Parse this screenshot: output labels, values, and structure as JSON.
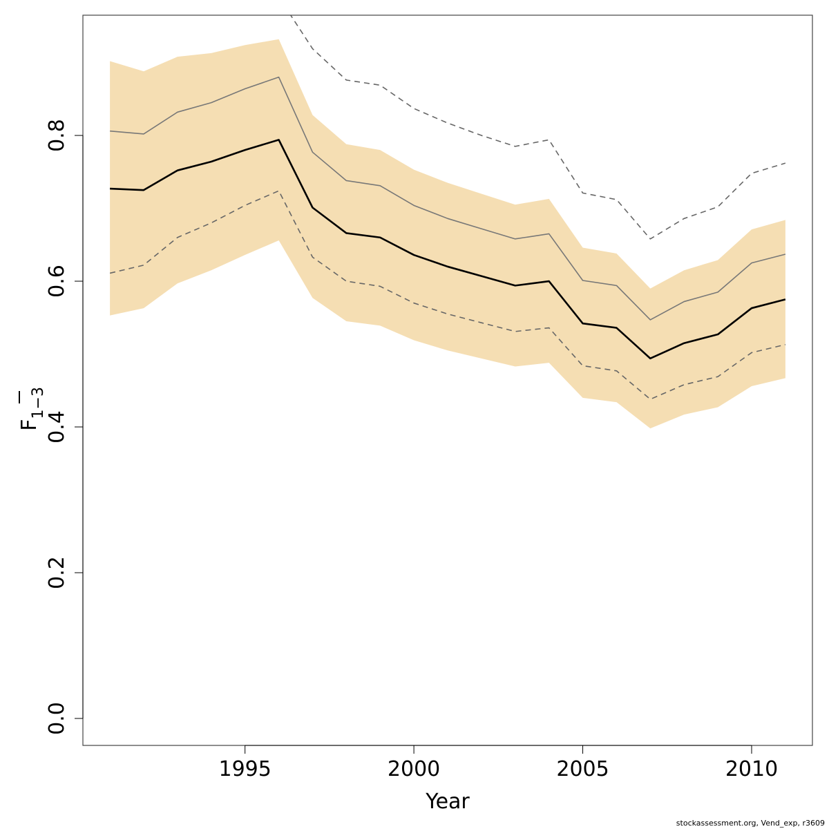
{
  "chart_data": {
    "type": "line",
    "xlabel": "Year",
    "ylabel": {
      "main": "F",
      "subscript": "1−3"
    },
    "xlim": [
      1990.2,
      2011.8
    ],
    "ylim": [
      -0.037,
      0.965
    ],
    "x_ticks": [
      1995,
      2000,
      2005,
      2010
    ],
    "x_tick_labels": [
      "1995",
      "2000",
      "2005",
      "2010"
    ],
    "y_ticks": [
      0.0,
      0.2,
      0.4,
      0.6,
      0.8
    ],
    "y_tick_labels": [
      "0.0",
      "0.2",
      "0.4",
      "0.6",
      "0.8"
    ],
    "grid": false,
    "legend": "none",
    "x": [
      1991,
      1992,
      1993,
      1994,
      1995,
      1996,
      1997,
      1998,
      1999,
      2000,
      2001,
      2002,
      2003,
      2004,
      2005,
      2006,
      2007,
      2008,
      2009,
      2010,
      2011
    ],
    "band": {
      "color": "#F5DEB3",
      "upper": [
        0.902,
        0.888,
        0.908,
        0.913,
        0.924,
        0.932,
        0.828,
        0.788,
        0.78,
        0.753,
        0.735,
        0.72,
        0.705,
        0.713,
        0.646,
        0.638,
        0.59,
        0.615,
        0.629,
        0.671,
        0.684
      ],
      "lower": [
        0.553,
        0.563,
        0.597,
        0.615,
        0.636,
        0.656,
        0.577,
        0.545,
        0.539,
        0.519,
        0.505,
        0.494,
        0.483,
        0.488,
        0.44,
        0.434,
        0.398,
        0.417,
        0.427,
        0.456,
        0.467
      ]
    },
    "series": [
      {
        "style": "solid",
        "color": "#000000",
        "width": 2.6,
        "values": [
          0.727,
          0.725,
          0.752,
          0.764,
          0.78,
          0.794,
          0.701,
          0.666,
          0.66,
          0.636,
          0.62,
          0.607,
          0.594,
          0.6,
          0.542,
          0.536,
          0.494,
          0.515,
          0.527,
          0.563,
          0.575
        ]
      },
      {
        "style": "solid",
        "color": "#777777",
        "width": 1.6,
        "values": [
          0.806,
          0.802,
          0.832,
          0.845,
          0.864,
          0.88,
          0.777,
          0.738,
          0.731,
          0.704,
          0.686,
          0.672,
          0.658,
          0.665,
          0.601,
          0.594,
          0.547,
          0.572,
          0.585,
          0.625,
          0.637
        ]
      },
      {
        "style": "dashed",
        "color": "#666666",
        "width": 1.6,
        "values": [
          0.611,
          0.622,
          0.66,
          0.68,
          0.704,
          0.724,
          0.633,
          0.6,
          0.593,
          0.57,
          0.555,
          0.543,
          0.531,
          0.536,
          0.484,
          0.477,
          0.438,
          0.458,
          0.469,
          0.502,
          0.513
        ]
      },
      {
        "style": "dashed",
        "color": "#666666",
        "width": 1.6,
        "values": [
          null,
          null,
          null,
          null,
          null,
          0.99,
          0.919,
          0.876,
          0.869,
          0.837,
          0.817,
          0.8,
          0.785,
          0.794,
          0.721,
          0.712,
          0.658,
          0.686,
          0.702,
          0.748,
          0.762
        ]
      }
    ]
  },
  "footer_text": "stockassessment.org, Vend_exp, r3609"
}
